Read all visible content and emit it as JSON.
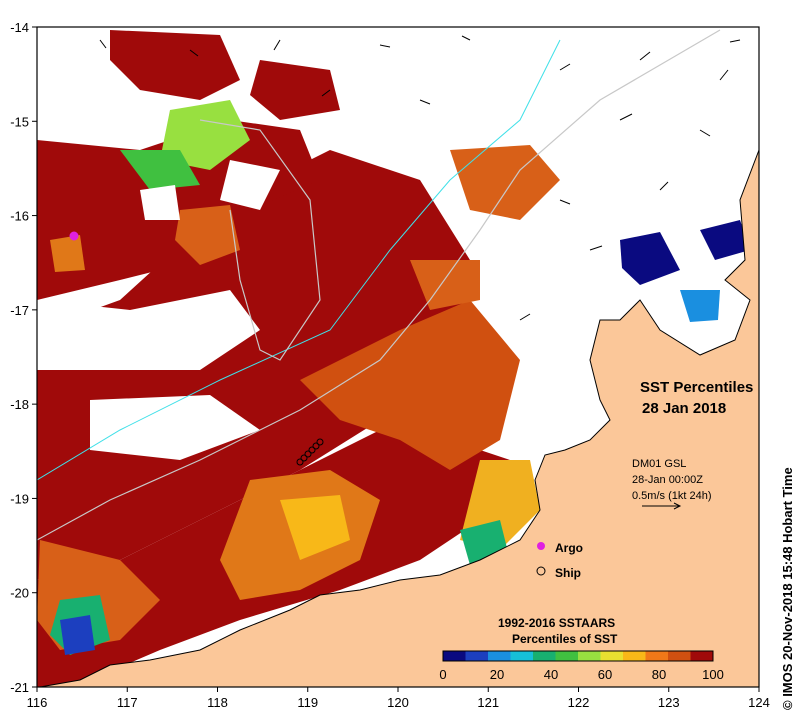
{
  "map": {
    "title": "SST Percentiles",
    "date": "28 Jan 2018",
    "current_source": "DM01 GSL",
    "current_time": "28-Jan 00:00Z",
    "current_scale": "0.5m/s (1kt 24h)",
    "legend_argo": "Argo",
    "legend_ship": "Ship",
    "colorbar_title_line1": "1992-2016 SSTAARS",
    "colorbar_title_line2": "Percentiles of SST",
    "credit": "© IMOS 20-Nov-2018 15:48 Hobart Time",
    "x_ticks": [
      "116",
      "117",
      "118",
      "119",
      "120",
      "121",
      "122",
      "123",
      "124"
    ],
    "y_ticks": [
      "-14",
      "-15",
      "-16",
      "-17",
      "-18",
      "-19",
      "-20",
      "-21"
    ],
    "colorbar_ticks": [
      "0",
      "20",
      "40",
      "60",
      "80",
      "100"
    ],
    "colorbar_colors": [
      "#0a0a80",
      "#1c3fbf",
      "#1a8fe0",
      "#16c0d8",
      "#18b070",
      "#40c040",
      "#98e040",
      "#e8e030",
      "#f8b818",
      "#f07818",
      "#d05010",
      "#a00a0a"
    ],
    "colors": {
      "land": "#fbc799",
      "hot": "#a00a0a",
      "warm": "#d86018",
      "orange": "#f09018",
      "argo": "#e020e0",
      "contour": "#40e0e8"
    }
  }
}
